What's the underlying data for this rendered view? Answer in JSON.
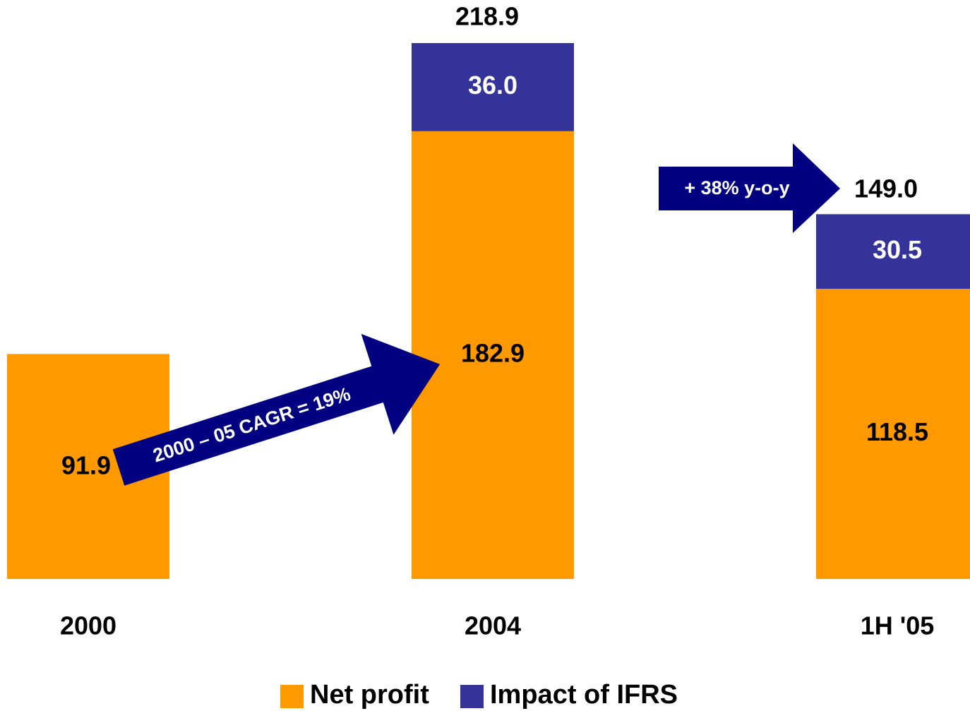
{
  "chart_data": {
    "type": "stacked_bar",
    "categories": [
      "2000",
      "2004",
      "1H '05"
    ],
    "series": [
      {
        "name": "Net profit",
        "color": "#ff9900",
        "values": [
          91.9,
          182.9,
          118.5
        ],
        "value_labels": [
          "91.9",
          "182.9",
          "118.5"
        ]
      },
      {
        "name": "Impact of IFRS",
        "color": "#333399",
        "values": [
          null,
          36.0,
          30.5
        ],
        "value_labels": [
          null,
          "36.0",
          "30.5"
        ]
      }
    ],
    "totals": [
      null,
      218.9,
      149.0
    ],
    "total_labels": [
      null,
      "218.9",
      "149.0"
    ],
    "ylim": [
      0,
      218.9
    ],
    "annotations": [
      "2000 – 05 CAGR = 19%",
      "+ 38% y-o-y"
    ],
    "legend": "bottom"
  }
}
